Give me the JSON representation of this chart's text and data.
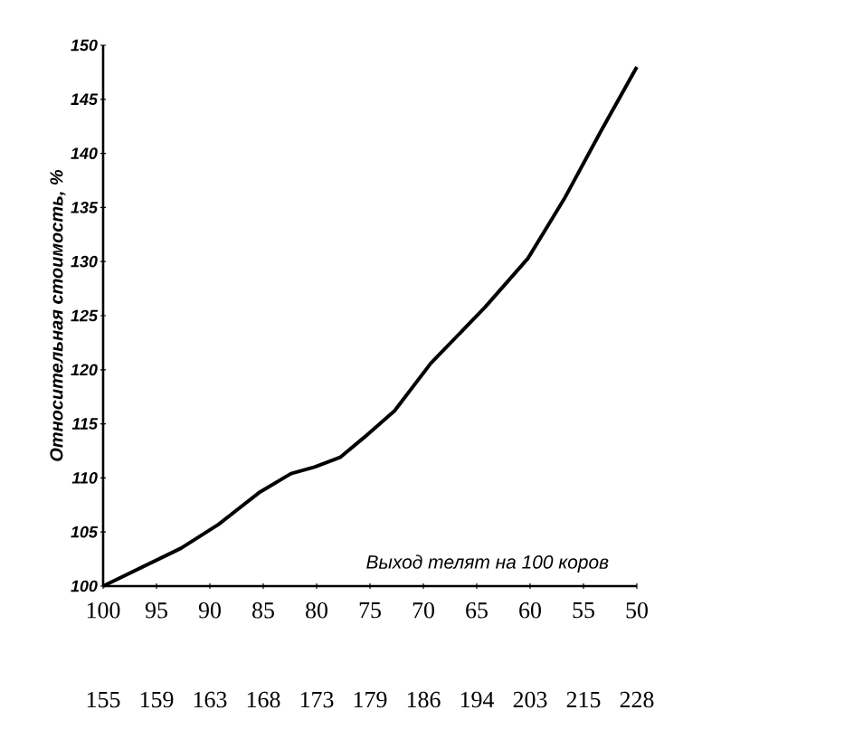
{
  "chart_data": {
    "type": "line",
    "xlabel": "Выход телят на 100 коров",
    "ylabel": "Относительная стоимость, %",
    "x": [
      100,
      92.7,
      89.2,
      85.3,
      82.4,
      80.2,
      77.8,
      75.6,
      72.7,
      69.3,
      64.2,
      60.2,
      56.8,
      53.4,
      50
    ],
    "values": [
      100,
      103.5,
      105.7,
      108.7,
      110.4,
      111.0,
      111.9,
      113.7,
      116.2,
      120.6,
      125.8,
      130.3,
      135.8,
      142.0,
      148
    ],
    "color": "#000000",
    "xlim": [
      100,
      50
    ],
    "ylim": [
      100,
      150
    ],
    "xticks": [
      100,
      95,
      90,
      85,
      80,
      75,
      70,
      65,
      60,
      55,
      50
    ],
    "yticks": [
      100,
      105,
      110,
      115,
      120,
      125,
      130,
      135,
      140,
      145,
      150
    ],
    "annotations": [
      "155",
      "159",
      "163",
      "168",
      "173",
      "179",
      "186",
      "194",
      "203",
      "215",
      "228"
    ]
  }
}
